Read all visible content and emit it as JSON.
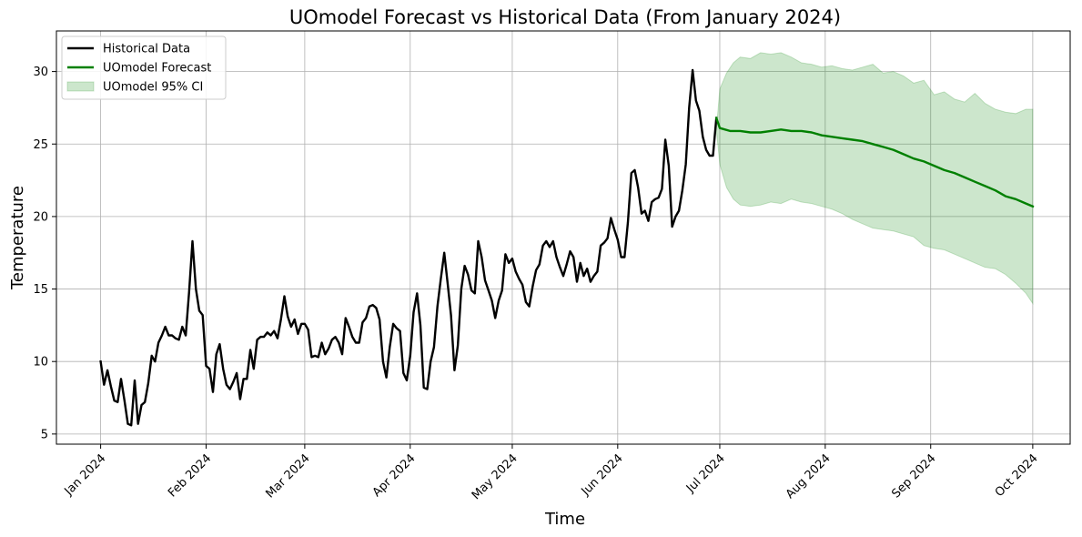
{
  "chart_data": {
    "type": "line",
    "title": "UOmodel Forecast vs Historical Data (From January 2024)",
    "xlabel": "Time",
    "ylabel": "Temperature",
    "ylim": [
      4.3,
      32.8
    ],
    "xlim": [
      "2023-12-19",
      "2024-10-12"
    ],
    "x_ticks": [
      {
        "date": "2024-01-01",
        "label": "Jan 2024"
      },
      {
        "date": "2024-02-01",
        "label": "Feb 2024"
      },
      {
        "date": "2024-03-01",
        "label": "Mar 2024"
      },
      {
        "date": "2024-04-01",
        "label": "Apr 2024"
      },
      {
        "date": "2024-05-01",
        "label": "May 2024"
      },
      {
        "date": "2024-06-01",
        "label": "Jun 2024"
      },
      {
        "date": "2024-07-01",
        "label": "Jul 2024"
      },
      {
        "date": "2024-08-01",
        "label": "Aug 2024"
      },
      {
        "date": "2024-09-01",
        "label": "Sep 2024"
      },
      {
        "date": "2024-10-01",
        "label": "Oct 2024"
      }
    ],
    "y_ticks": [
      5,
      10,
      15,
      20,
      25,
      30
    ],
    "grid": true,
    "legend_position": "top-left",
    "series": [
      {
        "name": "Historical Data",
        "color": "#000000",
        "points": [
          [
            "2024-01-01",
            10.0
          ],
          [
            "2024-01-02",
            8.4
          ],
          [
            "2024-01-03",
            9.4
          ],
          [
            "2024-01-04",
            8.3
          ],
          [
            "2024-01-05",
            7.3
          ],
          [
            "2024-01-06",
            7.2
          ],
          [
            "2024-01-07",
            8.8
          ],
          [
            "2024-01-08",
            7.3
          ],
          [
            "2024-01-09",
            5.7
          ],
          [
            "2024-01-10",
            5.6
          ],
          [
            "2024-01-11",
            8.7
          ],
          [
            "2024-01-12",
            5.7
          ],
          [
            "2024-01-13",
            7.0
          ],
          [
            "2024-01-14",
            7.2
          ],
          [
            "2024-01-15",
            8.5
          ],
          [
            "2024-01-16",
            10.4
          ],
          [
            "2024-01-17",
            10.0
          ],
          [
            "2024-01-18",
            11.3
          ],
          [
            "2024-01-19",
            11.8
          ],
          [
            "2024-01-20",
            12.4
          ],
          [
            "2024-01-21",
            11.8
          ],
          [
            "2024-01-22",
            11.8
          ],
          [
            "2024-01-23",
            11.6
          ],
          [
            "2024-01-24",
            11.5
          ],
          [
            "2024-01-25",
            12.4
          ],
          [
            "2024-01-26",
            11.8
          ],
          [
            "2024-01-27",
            14.8
          ],
          [
            "2024-01-28",
            18.3
          ],
          [
            "2024-01-29",
            15.0
          ],
          [
            "2024-01-30",
            13.5
          ],
          [
            "2024-01-31",
            13.2
          ],
          [
            "2024-02-01",
            9.7
          ],
          [
            "2024-02-02",
            9.5
          ],
          [
            "2024-02-03",
            7.9
          ],
          [
            "2024-02-04",
            10.5
          ],
          [
            "2024-02-05",
            11.2
          ],
          [
            "2024-02-06",
            9.5
          ],
          [
            "2024-02-07",
            8.4
          ],
          [
            "2024-02-08",
            8.1
          ],
          [
            "2024-02-09",
            8.6
          ],
          [
            "2024-02-10",
            9.2
          ],
          [
            "2024-02-11",
            7.4
          ],
          [
            "2024-02-12",
            8.8
          ],
          [
            "2024-02-13",
            8.8
          ],
          [
            "2024-02-14",
            10.8
          ],
          [
            "2024-02-15",
            9.5
          ],
          [
            "2024-02-16",
            11.5
          ],
          [
            "2024-02-17",
            11.7
          ],
          [
            "2024-02-18",
            11.7
          ],
          [
            "2024-02-19",
            12.0
          ],
          [
            "2024-02-20",
            11.8
          ],
          [
            "2024-02-21",
            12.1
          ],
          [
            "2024-02-22",
            11.6
          ],
          [
            "2024-02-23",
            12.9
          ],
          [
            "2024-02-24",
            14.5
          ],
          [
            "2024-02-25",
            13.1
          ],
          [
            "2024-02-26",
            12.4
          ],
          [
            "2024-02-27",
            12.9
          ],
          [
            "2024-02-28",
            11.9
          ],
          [
            "2024-02-29",
            12.6
          ],
          [
            "2024-03-01",
            12.6
          ],
          [
            "2024-03-02",
            12.2
          ],
          [
            "2024-03-03",
            10.3
          ],
          [
            "2024-03-04",
            10.4
          ],
          [
            "2024-03-05",
            10.3
          ],
          [
            "2024-03-06",
            11.3
          ],
          [
            "2024-03-07",
            10.5
          ],
          [
            "2024-03-08",
            10.9
          ],
          [
            "2024-03-09",
            11.5
          ],
          [
            "2024-03-10",
            11.7
          ],
          [
            "2024-03-11",
            11.3
          ],
          [
            "2024-03-12",
            10.5
          ],
          [
            "2024-03-13",
            13.0
          ],
          [
            "2024-03-14",
            12.4
          ],
          [
            "2024-03-15",
            11.7
          ],
          [
            "2024-03-16",
            11.3
          ],
          [
            "2024-03-17",
            11.3
          ],
          [
            "2024-03-18",
            12.7
          ],
          [
            "2024-03-19",
            13.0
          ],
          [
            "2024-03-20",
            13.8
          ],
          [
            "2024-03-21",
            13.9
          ],
          [
            "2024-03-22",
            13.7
          ],
          [
            "2024-03-23",
            12.9
          ],
          [
            "2024-03-24",
            10.0
          ],
          [
            "2024-03-25",
            8.9
          ],
          [
            "2024-03-26",
            11.0
          ],
          [
            "2024-03-27",
            12.6
          ],
          [
            "2024-03-28",
            12.3
          ],
          [
            "2024-03-29",
            12.1
          ],
          [
            "2024-03-30",
            9.2
          ],
          [
            "2024-03-31",
            8.7
          ],
          [
            "2024-04-01",
            10.4
          ],
          [
            "2024-04-02",
            13.4
          ],
          [
            "2024-04-03",
            14.7
          ],
          [
            "2024-04-04",
            12.5
          ],
          [
            "2024-04-05",
            8.2
          ],
          [
            "2024-04-06",
            8.1
          ],
          [
            "2024-04-07",
            10.0
          ],
          [
            "2024-04-08",
            11.0
          ],
          [
            "2024-04-09",
            13.8
          ],
          [
            "2024-04-10",
            15.7
          ],
          [
            "2024-04-11",
            17.5
          ],
          [
            "2024-04-12",
            15.4
          ],
          [
            "2024-04-13",
            13.2
          ],
          [
            "2024-04-14",
            9.4
          ],
          [
            "2024-04-15",
            11.1
          ],
          [
            "2024-04-16",
            15.0
          ],
          [
            "2024-04-17",
            16.6
          ],
          [
            "2024-04-18",
            16.0
          ],
          [
            "2024-04-19",
            14.9
          ],
          [
            "2024-04-20",
            14.7
          ],
          [
            "2024-04-21",
            18.3
          ],
          [
            "2024-04-22",
            17.2
          ],
          [
            "2024-04-23",
            15.6
          ],
          [
            "2024-04-24",
            14.9
          ],
          [
            "2024-04-25",
            14.2
          ],
          [
            "2024-04-26",
            13.0
          ],
          [
            "2024-04-27",
            14.2
          ],
          [
            "2024-04-28",
            14.9
          ],
          [
            "2024-04-29",
            17.4
          ],
          [
            "2024-04-30",
            16.8
          ],
          [
            "2024-05-01",
            17.1
          ],
          [
            "2024-05-02",
            16.2
          ],
          [
            "2024-05-03",
            15.7
          ],
          [
            "2024-05-04",
            15.3
          ],
          [
            "2024-05-05",
            14.1
          ],
          [
            "2024-05-06",
            13.8
          ],
          [
            "2024-05-07",
            15.2
          ],
          [
            "2024-05-08",
            16.3
          ],
          [
            "2024-05-09",
            16.7
          ],
          [
            "2024-05-10",
            18.0
          ],
          [
            "2024-05-11",
            18.3
          ],
          [
            "2024-05-12",
            17.9
          ],
          [
            "2024-05-13",
            18.3
          ],
          [
            "2024-05-14",
            17.2
          ],
          [
            "2024-05-15",
            16.5
          ],
          [
            "2024-05-16",
            15.9
          ],
          [
            "2024-05-17",
            16.7
          ],
          [
            "2024-05-18",
            17.6
          ],
          [
            "2024-05-19",
            17.2
          ],
          [
            "2024-05-20",
            15.5
          ],
          [
            "2024-05-21",
            16.8
          ],
          [
            "2024-05-22",
            15.9
          ],
          [
            "2024-05-23",
            16.4
          ],
          [
            "2024-05-24",
            15.5
          ],
          [
            "2024-05-25",
            15.9
          ],
          [
            "2024-05-26",
            16.2
          ],
          [
            "2024-05-27",
            18.0
          ],
          [
            "2024-05-28",
            18.2
          ],
          [
            "2024-05-29",
            18.5
          ],
          [
            "2024-05-30",
            19.9
          ],
          [
            "2024-05-31",
            19.1
          ],
          [
            "2024-06-01",
            18.4
          ],
          [
            "2024-06-02",
            17.2
          ],
          [
            "2024-06-03",
            17.2
          ],
          [
            "2024-06-04",
            19.6
          ],
          [
            "2024-06-05",
            23.0
          ],
          [
            "2024-06-06",
            23.2
          ],
          [
            "2024-06-07",
            22.0
          ],
          [
            "2024-06-08",
            20.2
          ],
          [
            "2024-06-09",
            20.4
          ],
          [
            "2024-06-10",
            19.7
          ],
          [
            "2024-06-11",
            21.0
          ],
          [
            "2024-06-12",
            21.2
          ],
          [
            "2024-06-13",
            21.3
          ],
          [
            "2024-06-14",
            21.9
          ],
          [
            "2024-06-15",
            25.3
          ],
          [
            "2024-06-16",
            23.5
          ],
          [
            "2024-06-17",
            19.3
          ],
          [
            "2024-06-18",
            20.0
          ],
          [
            "2024-06-19",
            20.4
          ],
          [
            "2024-06-20",
            21.8
          ],
          [
            "2024-06-21",
            23.6
          ],
          [
            "2024-06-22",
            27.5
          ],
          [
            "2024-06-23",
            30.1
          ],
          [
            "2024-06-24",
            28.0
          ],
          [
            "2024-06-25",
            27.3
          ],
          [
            "2024-06-26",
            25.5
          ],
          [
            "2024-06-27",
            24.6
          ],
          [
            "2024-06-28",
            24.2
          ],
          [
            "2024-06-29",
            24.2
          ],
          [
            "2024-06-30",
            26.8
          ]
        ]
      },
      {
        "name": "UOmodel Forecast",
        "color": "#008000",
        "points": [
          [
            "2024-06-30",
            26.8
          ],
          [
            "2024-07-01",
            26.1
          ],
          [
            "2024-07-04",
            25.9
          ],
          [
            "2024-07-07",
            25.9
          ],
          [
            "2024-07-10",
            25.8
          ],
          [
            "2024-07-13",
            25.8
          ],
          [
            "2024-07-16",
            25.9
          ],
          [
            "2024-07-19",
            26.0
          ],
          [
            "2024-07-22",
            25.9
          ],
          [
            "2024-07-25",
            25.9
          ],
          [
            "2024-07-28",
            25.8
          ],
          [
            "2024-07-31",
            25.6
          ],
          [
            "2024-08-03",
            25.5
          ],
          [
            "2024-08-06",
            25.4
          ],
          [
            "2024-08-09",
            25.3
          ],
          [
            "2024-08-12",
            25.2
          ],
          [
            "2024-08-15",
            25.0
          ],
          [
            "2024-08-18",
            24.8
          ],
          [
            "2024-08-21",
            24.6
          ],
          [
            "2024-08-24",
            24.3
          ],
          [
            "2024-08-27",
            24.0
          ],
          [
            "2024-08-30",
            23.8
          ],
          [
            "2024-09-02",
            23.5
          ],
          [
            "2024-09-05",
            23.2
          ],
          [
            "2024-09-08",
            23.0
          ],
          [
            "2024-09-11",
            22.7
          ],
          [
            "2024-09-14",
            22.4
          ],
          [
            "2024-09-17",
            22.1
          ],
          [
            "2024-09-20",
            21.8
          ],
          [
            "2024-09-23",
            21.4
          ],
          [
            "2024-09-26",
            21.2
          ],
          [
            "2024-09-29",
            20.9
          ],
          [
            "2024-10-01",
            20.7
          ]
        ]
      }
    ],
    "confidence_band": {
      "name": "UOmodel 95% CI",
      "color": "#008000",
      "opacity": 0.2,
      "x": [
        "2024-06-30",
        "2024-07-01",
        "2024-07-03",
        "2024-07-05",
        "2024-07-07",
        "2024-07-10",
        "2024-07-13",
        "2024-07-16",
        "2024-07-19",
        "2024-07-22",
        "2024-07-25",
        "2024-07-28",
        "2024-07-31",
        "2024-08-03",
        "2024-08-06",
        "2024-08-09",
        "2024-08-12",
        "2024-08-15",
        "2024-08-18",
        "2024-08-21",
        "2024-08-24",
        "2024-08-27",
        "2024-08-30",
        "2024-09-02",
        "2024-09-05",
        "2024-09-08",
        "2024-09-11",
        "2024-09-14",
        "2024-09-17",
        "2024-09-20",
        "2024-09-23",
        "2024-09-26",
        "2024-09-29",
        "2024-10-01"
      ],
      "upper": [
        26.0,
        28.8,
        29.9,
        30.6,
        31.0,
        30.9,
        31.3,
        31.2,
        31.3,
        31.0,
        30.6,
        30.5,
        30.3,
        30.4,
        30.2,
        30.1,
        30.3,
        30.5,
        29.9,
        30.0,
        29.7,
        29.2,
        29.4,
        28.4,
        28.6,
        28.1,
        27.9,
        28.5,
        27.8,
        27.4,
        27.2,
        27.1,
        27.4,
        27.4
      ],
      "upper_x_note": "",
      "lower": [
        26.0,
        23.6,
        22.0,
        21.2,
        20.8,
        20.7,
        20.8,
        21.0,
        20.9,
        21.2,
        21.0,
        20.9,
        20.7,
        20.5,
        20.2,
        19.8,
        19.5,
        19.2,
        19.1,
        19.0,
        18.8,
        18.6,
        18.0,
        17.8,
        17.7,
        17.4,
        17.1,
        16.8,
        16.5,
        16.4,
        16.0,
        15.4,
        14.7,
        14.0
      ]
    }
  }
}
